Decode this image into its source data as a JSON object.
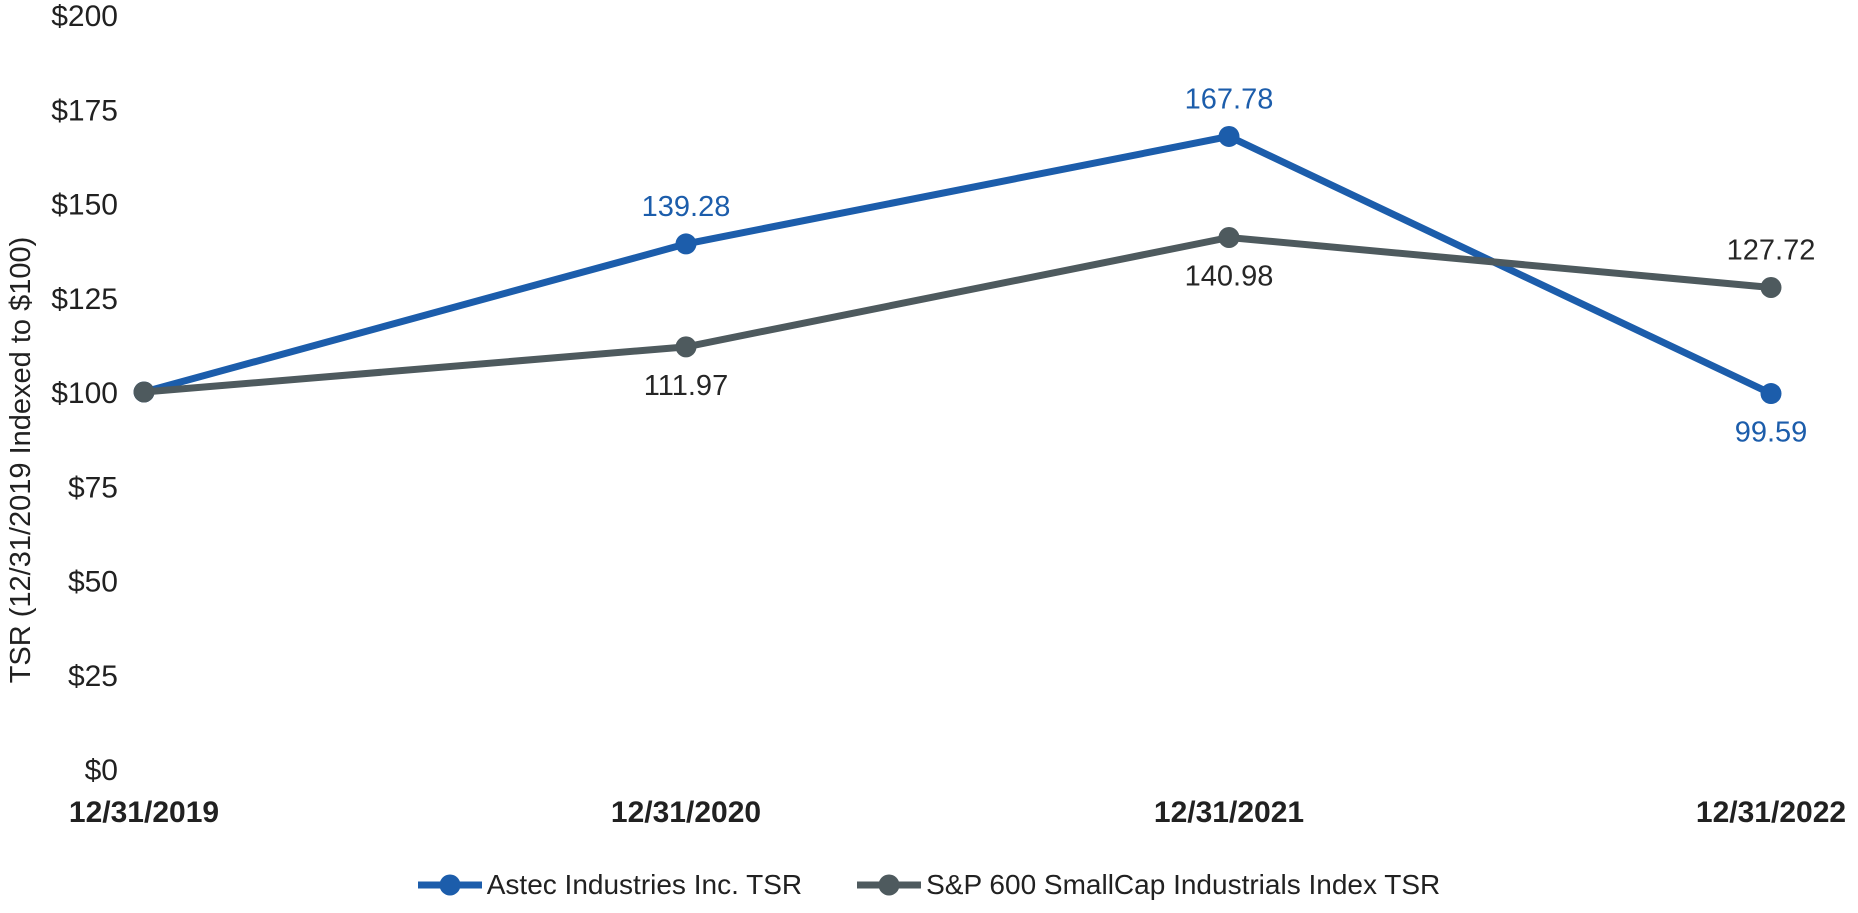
{
  "chart_data": {
    "type": "line",
    "title": "",
    "ylabel": "TSR (12/31/2019 Indexed to $100)",
    "xlabel": "",
    "x_categories": [
      "12/31/2019",
      "12/31/2020",
      "12/31/2021",
      "12/31/2022"
    ],
    "y_ticks": [
      "$0",
      "$25",
      "$50",
      "$75",
      "$100",
      "$125",
      "$150",
      "$175",
      "$200"
    ],
    "y_tick_values": [
      0,
      25,
      50,
      75,
      100,
      125,
      150,
      175,
      200
    ],
    "ylim": [
      0,
      200
    ],
    "grid": false,
    "axis_lines": false,
    "legend_position": "bottom-center",
    "series": [
      {
        "name": "Astec Industries Inc. TSR",
        "color": "#1C5DAB",
        "label_color": "#1C5DAB",
        "values": [
          100,
          139.28,
          167.78,
          99.59
        ],
        "point_labels": [
          "",
          "139.28",
          "167.78",
          "99.59"
        ],
        "label_placement": [
          "none",
          "above",
          "above",
          "below"
        ]
      },
      {
        "name": "S&P 600 SmallCap Industrials Index TSR",
        "color": "#4E5A5E",
        "label_color": "#262626",
        "values": [
          100,
          111.97,
          140.98,
          127.72
        ],
        "point_labels": [
          "",
          "111.97",
          "140.98",
          "127.72"
        ],
        "label_placement": [
          "none",
          "below",
          "below",
          "above"
        ]
      }
    ]
  },
  "colors": {
    "background": "#FFFFFF",
    "text": "#212121"
  }
}
